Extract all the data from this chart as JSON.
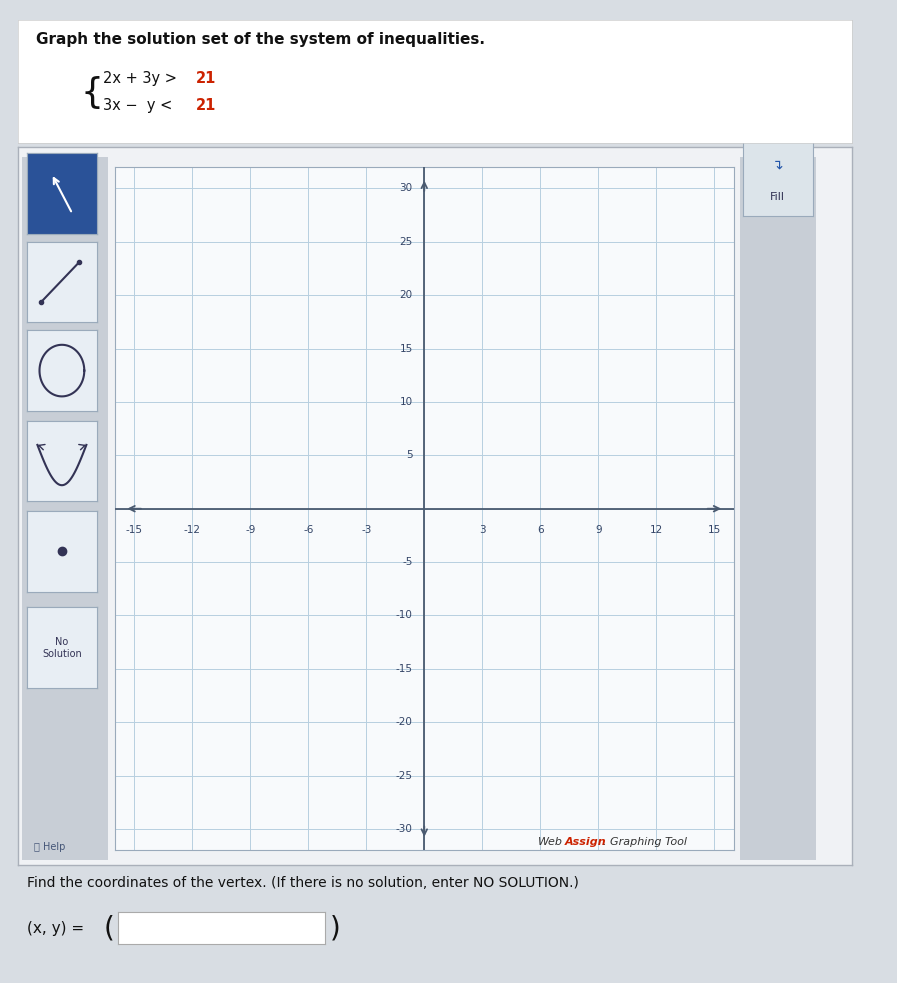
{
  "title_text": "Graph the solution set of the system of inequalities.",
  "eq1_black": "2x + 3y > ",
  "eq1_red": "21",
  "eq2_black": "3x −  y < ",
  "eq2_red": "21",
  "xlim": [
    -16,
    16
  ],
  "ylim": [
    -32,
    32
  ],
  "xticks": [
    -15,
    -12,
    -9,
    -6,
    -3,
    3,
    6,
    9,
    12,
    15
  ],
  "yticks": [
    -30,
    -25,
    -20,
    -15,
    -10,
    -5,
    5,
    10,
    15,
    20,
    25,
    30
  ],
  "grid_color": "#b8cfe0",
  "axis_color": "#4a5a70",
  "plot_bg": "#f8fafc",
  "panel_bg": "#c8ced6",
  "outer_bg": "#d8dde3",
  "white_bg": "#f0f2f5",
  "btn_blue": "#2a5298",
  "btn_light": "#e8eef4",
  "btn_border": "#9aaabb",
  "fill_btn_bg": "#dce4ea",
  "webassign_red": "#cc2200",
  "bottom_text": "Find the coordinates of the vertex. (If there is no solution, enter NO SOLUTION.)",
  "answer_label": "(x, y) = ",
  "figsize": [
    8.97,
    9.83
  ],
  "dpi": 100
}
